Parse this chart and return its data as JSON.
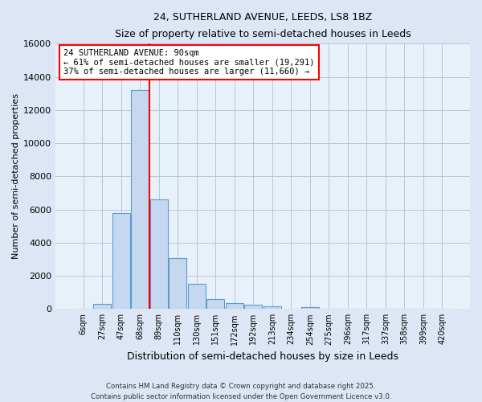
{
  "title1": "24, SUTHERLAND AVENUE, LEEDS, LS8 1BZ",
  "title2": "Size of property relative to semi-detached houses in Leeds",
  "xlabel": "Distribution of semi-detached houses by size in Leeds",
  "ylabel": "Number of semi-detached properties",
  "categories": [
    "6sqm",
    "27sqm",
    "47sqm",
    "68sqm",
    "89sqm",
    "110sqm",
    "130sqm",
    "151sqm",
    "172sqm",
    "192sqm",
    "213sqm",
    "234sqm",
    "254sqm",
    "275sqm",
    "296sqm",
    "317sqm",
    "337sqm",
    "358sqm",
    "399sqm",
    "420sqm"
  ],
  "values": [
    0,
    300,
    5800,
    13200,
    6600,
    3050,
    1500,
    600,
    350,
    270,
    150,
    0,
    100,
    0,
    0,
    0,
    0,
    0,
    0,
    0
  ],
  "bar_color": "#c5d8f0",
  "bar_edge_color": "#5b9bd5",
  "highlight_label": "24 SUTHERLAND AVENUE: 90sqm",
  "pct_smaller": 61,
  "n_smaller": 19291,
  "pct_larger": 37,
  "n_larger": 11660,
  "vline_color": "red",
  "vline_x": 3.5,
  "ylim": [
    0,
    16000
  ],
  "yticks": [
    0,
    2000,
    4000,
    6000,
    8000,
    10000,
    12000,
    14000,
    16000
  ],
  "footer1": "Contains HM Land Registry data © Crown copyright and database right 2025.",
  "footer2": "Contains public sector information licensed under the Open Government Licence v3.0.",
  "bg_color": "#dce6f5",
  "plot_bg": "#e8f0fa"
}
